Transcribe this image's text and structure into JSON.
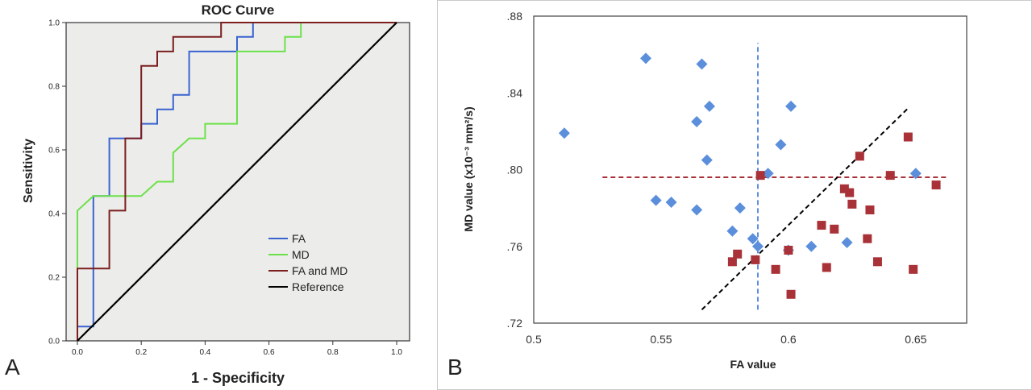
{
  "panels": [
    {
      "letter": "A"
    },
    {
      "letter": "B"
    }
  ],
  "chart_data": [
    {
      "type": "line",
      "title": "ROC Curve",
      "xlabel": "1 - Specificity",
      "ylabel": "Sensitivity",
      "xlim": [
        0,
        1
      ],
      "ylim": [
        0,
        1
      ],
      "xticks": [
        "0.0",
        "0.2",
        "0.4",
        "0.6",
        "0.8",
        "1.0"
      ],
      "yticks": [
        "0.0",
        "0.2",
        "0.4",
        "0.6",
        "0.8",
        "1.0"
      ],
      "background": "#ececea",
      "legend_position": "bottom-right",
      "series": [
        {
          "name": "FA",
          "color": "#3a63d0",
          "points": [
            [
              0,
              0
            ],
            [
              0,
              0.045
            ],
            [
              0.05,
              0.045
            ],
            [
              0.05,
              0.455
            ],
            [
              0.1,
              0.455
            ],
            [
              0.1,
              0.636
            ],
            [
              0.2,
              0.636
            ],
            [
              0.2,
              0.682
            ],
            [
              0.25,
              0.682
            ],
            [
              0.25,
              0.727
            ],
            [
              0.3,
              0.727
            ],
            [
              0.3,
              0.773
            ],
            [
              0.35,
              0.773
            ],
            [
              0.35,
              0.909
            ],
            [
              0.5,
              0.909
            ],
            [
              0.5,
              0.955
            ],
            [
              0.55,
              0.955
            ],
            [
              0.55,
              1.0
            ],
            [
              1.0,
              1.0
            ]
          ]
        },
        {
          "name": "MD",
          "color": "#6ce14a",
          "points": [
            [
              0,
              0
            ],
            [
              0,
              0.227
            ],
            [
              0,
              0.409
            ],
            [
              0.05,
              0.455
            ],
            [
              0.2,
              0.455
            ],
            [
              0.25,
              0.5
            ],
            [
              0.3,
              0.5
            ],
            [
              0.3,
              0.591
            ],
            [
              0.35,
              0.636
            ],
            [
              0.4,
              0.636
            ],
            [
              0.4,
              0.682
            ],
            [
              0.5,
              0.682
            ],
            [
              0.5,
              0.909
            ],
            [
              0.65,
              0.909
            ],
            [
              0.65,
              0.955
            ],
            [
              0.7,
              0.955
            ],
            [
              0.7,
              1.0
            ],
            [
              1.0,
              1.0
            ]
          ]
        },
        {
          "name": "FA and MD",
          "color": "#7b1f1f",
          "points": [
            [
              0,
              0
            ],
            [
              0,
              0.227
            ],
            [
              0.1,
              0.227
            ],
            [
              0.1,
              0.409
            ],
            [
              0.15,
              0.409
            ],
            [
              0.15,
              0.636
            ],
            [
              0.2,
              0.636
            ],
            [
              0.2,
              0.864
            ],
            [
              0.25,
              0.864
            ],
            [
              0.25,
              0.909
            ],
            [
              0.3,
              0.909
            ],
            [
              0.3,
              0.955
            ],
            [
              0.45,
              0.955
            ],
            [
              0.45,
              1.0
            ],
            [
              1.0,
              1.0
            ]
          ]
        },
        {
          "name": "Reference",
          "color": "#000000",
          "points": [
            [
              0,
              0
            ],
            [
              1,
              1
            ]
          ]
        }
      ]
    },
    {
      "type": "scatter",
      "xlabel": "FA value",
      "ylabel": "MD value (x10⁻³ mm²/s)",
      "xlim": [
        0.5,
        0.67
      ],
      "ylim": [
        0.72,
        0.88
      ],
      "xticks": [
        "0.5",
        "0.55",
        "0.6",
        "0.65"
      ],
      "yticks": [
        ".72",
        ".76",
        ".80",
        ".84",
        ".88"
      ],
      "series": [
        {
          "color": "#5b8fdc",
          "marker": "diamond",
          "points": [
            [
              0.512,
              0.819
            ],
            [
              0.544,
              0.858
            ],
            [
              0.548,
              0.784
            ],
            [
              0.554,
              0.783
            ],
            [
              0.564,
              0.779
            ],
            [
              0.564,
              0.825
            ],
            [
              0.566,
              0.855
            ],
            [
              0.568,
              0.805
            ],
            [
              0.569,
              0.833
            ],
            [
              0.578,
              0.768
            ],
            [
              0.581,
              0.78
            ],
            [
              0.586,
              0.764
            ],
            [
              0.588,
              0.76
            ],
            [
              0.592,
              0.798
            ],
            [
              0.597,
              0.813
            ],
            [
              0.6,
              0.758
            ],
            [
              0.601,
              0.833
            ],
            [
              0.609,
              0.76
            ],
            [
              0.623,
              0.762
            ],
            [
              0.65,
              0.798
            ]
          ]
        },
        {
          "color": "#a93238",
          "marker": "square",
          "points": [
            [
              0.578,
              0.752
            ],
            [
              0.58,
              0.756
            ],
            [
              0.587,
              0.753
            ],
            [
              0.589,
              0.797
            ],
            [
              0.595,
              0.748
            ],
            [
              0.6,
              0.758
            ],
            [
              0.601,
              0.735
            ],
            [
              0.613,
              0.771
            ],
            [
              0.615,
              0.749
            ],
            [
              0.618,
              0.769
            ],
            [
              0.622,
              0.79
            ],
            [
              0.624,
              0.788
            ],
            [
              0.625,
              0.782
            ],
            [
              0.628,
              0.807
            ],
            [
              0.631,
              0.764
            ],
            [
              0.632,
              0.779
            ],
            [
              0.635,
              0.752
            ],
            [
              0.64,
              0.797
            ],
            [
              0.647,
              0.817
            ],
            [
              0.649,
              0.748
            ],
            [
              0.658,
              0.792
            ]
          ]
        }
      ],
      "reference_lines": [
        {
          "orientation": "vertical",
          "x": 0.588,
          "y_range": [
            0.727,
            0.866
          ],
          "color": "#5b8fdc",
          "style": "dashed"
        },
        {
          "orientation": "horizontal",
          "y": 0.796,
          "x_range": [
            0.527,
            0.662
          ],
          "color": "#a93238",
          "style": "dashed"
        },
        {
          "orientation": "diagonal",
          "points": [
            [
              0.566,
              0.727
            ],
            [
              0.647,
              0.832
            ]
          ],
          "color": "#000000",
          "style": "dashed"
        }
      ]
    }
  ]
}
